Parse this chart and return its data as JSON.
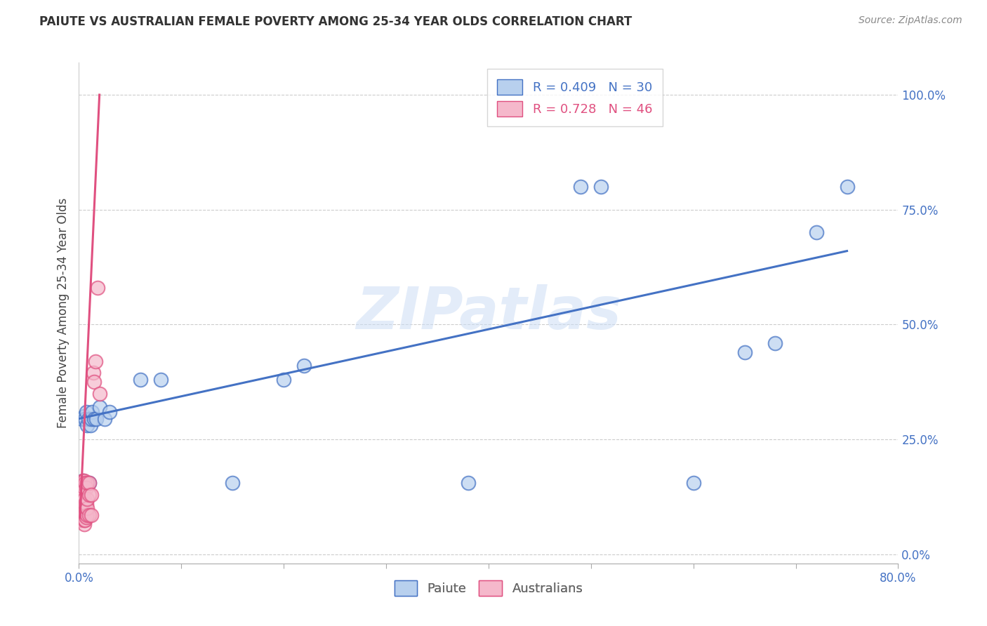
{
  "title": "PAIUTE VS AUSTRALIAN FEMALE POVERTY AMONG 25-34 YEAR OLDS CORRELATION CHART",
  "source": "Source: ZipAtlas.com",
  "ylabel": "Female Poverty Among 25-34 Year Olds",
  "watermark": "ZIPatlas",
  "xlim": [
    0.0,
    0.8
  ],
  "ylim": [
    -0.02,
    1.07
  ],
  "xticks": [
    0.0,
    0.1,
    0.2,
    0.3,
    0.4,
    0.5,
    0.6,
    0.7,
    0.8
  ],
  "yticks": [
    0.0,
    0.25,
    0.5,
    0.75,
    1.0
  ],
  "ytick_labels": [
    "0.0%",
    "25.0%",
    "50.0%",
    "75.0%",
    "100.0%"
  ],
  "xtick_labels": [
    "0.0%",
    "",
    "",
    "",
    "",
    "",
    "",
    "",
    "80.0%"
  ],
  "paiute_color": "#b8d0ee",
  "aus_color": "#f5b8cb",
  "trend_paiute_color": "#4472c4",
  "trend_aus_color": "#e05080",
  "paiute_x": [
    0.002,
    0.003,
    0.004,
    0.005,
    0.006,
    0.007,
    0.008,
    0.009,
    0.01,
    0.011,
    0.012,
    0.013,
    0.015,
    0.017,
    0.02,
    0.025,
    0.03,
    0.06,
    0.08,
    0.15,
    0.2,
    0.22,
    0.38,
    0.49,
    0.51,
    0.6,
    0.65,
    0.68,
    0.72,
    0.75
  ],
  "paiute_y": [
    0.155,
    0.295,
    0.16,
    0.3,
    0.295,
    0.31,
    0.28,
    0.295,
    0.155,
    0.28,
    0.295,
    0.31,
    0.295,
    0.295,
    0.32,
    0.295,
    0.31,
    0.38,
    0.38,
    0.155,
    0.38,
    0.41,
    0.155,
    0.8,
    0.8,
    0.155,
    0.44,
    0.46,
    0.7,
    0.8
  ],
  "aus_x": [
    0.001,
    0.001,
    0.001,
    0.001,
    0.001,
    0.001,
    0.002,
    0.002,
    0.002,
    0.003,
    0.003,
    0.003,
    0.003,
    0.004,
    0.004,
    0.004,
    0.004,
    0.005,
    0.005,
    0.005,
    0.005,
    0.005,
    0.005,
    0.005,
    0.005,
    0.006,
    0.006,
    0.006,
    0.006,
    0.007,
    0.007,
    0.007,
    0.008,
    0.008,
    0.008,
    0.008,
    0.01,
    0.01,
    0.01,
    0.012,
    0.012,
    0.014,
    0.015,
    0.016,
    0.018,
    0.02
  ],
  "aus_y": [
    0.075,
    0.1,
    0.11,
    0.12,
    0.13,
    0.145,
    0.08,
    0.11,
    0.15,
    0.075,
    0.085,
    0.11,
    0.15,
    0.08,
    0.11,
    0.13,
    0.16,
    0.065,
    0.075,
    0.085,
    0.1,
    0.11,
    0.12,
    0.145,
    0.16,
    0.075,
    0.09,
    0.11,
    0.155,
    0.08,
    0.11,
    0.145,
    0.085,
    0.1,
    0.12,
    0.155,
    0.085,
    0.13,
    0.155,
    0.085,
    0.13,
    0.395,
    0.375,
    0.42,
    0.58,
    0.35
  ],
  "paiute_trend_x": [
    0.0,
    0.75
  ],
  "paiute_trend_y": [
    0.295,
    0.66
  ],
  "aus_trend_x": [
    0.001,
    0.02
  ],
  "aus_trend_y": [
    0.08,
    1.0
  ]
}
